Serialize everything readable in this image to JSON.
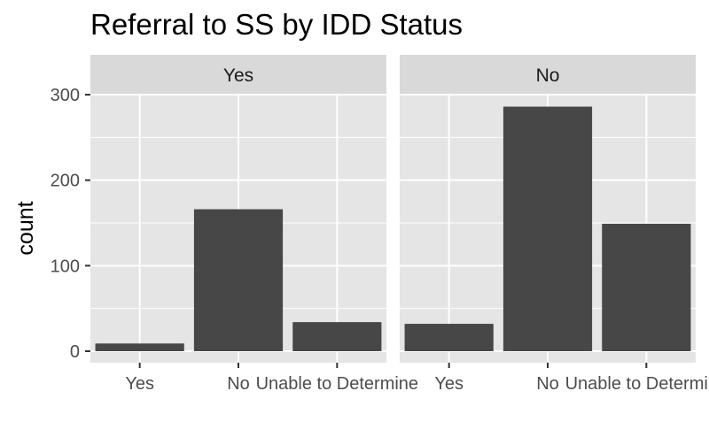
{
  "chart_data": {
    "type": "bar",
    "title": "Referral to SS by IDD Status",
    "xlabel": "",
    "ylabel": "count",
    "ylim": [
      0,
      345
    ],
    "yticks": [
      0,
      100,
      200,
      300
    ],
    "categories": [
      "Yes",
      "No",
      "Unable to Determine"
    ],
    "grid": true,
    "facets": [
      {
        "label": "Yes",
        "values": [
          9,
          166,
          34
        ]
      },
      {
        "label": "No",
        "values": [
          32,
          286,
          149
        ]
      }
    ],
    "colors": {
      "bar": "#474747",
      "panel": "#e5e5e5",
      "strip": "#d9d9d9",
      "grid": "#ffffff",
      "tick": "#333333"
    }
  }
}
